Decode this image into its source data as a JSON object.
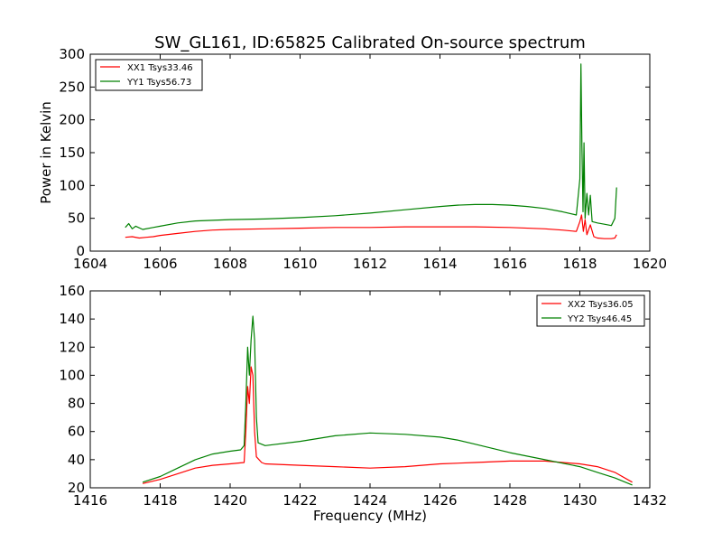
{
  "title": "SW_GL161, ID:65825 Calibrated On-source spectrum",
  "chart_data": [
    {
      "type": "line",
      "ylabel": "Power in Kelvin",
      "xlabel": "",
      "xlim": [
        1604,
        1620
      ],
      "ylim": [
        0,
        300
      ],
      "xticks": [
        1604,
        1606,
        1608,
        1610,
        1612,
        1614,
        1616,
        1618,
        1620
      ],
      "yticks": [
        0,
        50,
        100,
        150,
        200,
        250,
        300
      ],
      "legend": "top-left",
      "series": [
        {
          "name": "XX1 Tsys33.46",
          "color": "#ff0000",
          "points": [
            [
              1605.0,
              21
            ],
            [
              1605.2,
              22
            ],
            [
              1605.4,
              20
            ],
            [
              1605.6,
              21
            ],
            [
              1605.8,
              22
            ],
            [
              1606.0,
              24
            ],
            [
              1606.5,
              27
            ],
            [
              1607.0,
              30
            ],
            [
              1607.5,
              32
            ],
            [
              1608.0,
              33
            ],
            [
              1609.0,
              34
            ],
            [
              1610.0,
              35
            ],
            [
              1611.0,
              36
            ],
            [
              1612.0,
              36
            ],
            [
              1613.0,
              37
            ],
            [
              1614.0,
              37
            ],
            [
              1615.0,
              37
            ],
            [
              1616.0,
              36
            ],
            [
              1617.0,
              34
            ],
            [
              1617.5,
              32
            ],
            [
              1617.9,
              30
            ],
            [
              1618.0,
              45
            ],
            [
              1618.05,
              55
            ],
            [
              1618.1,
              30
            ],
            [
              1618.15,
              48
            ],
            [
              1618.2,
              25
            ],
            [
              1618.3,
              40
            ],
            [
              1618.4,
              22
            ],
            [
              1618.5,
              20
            ],
            [
              1618.7,
              19
            ],
            [
              1618.9,
              19
            ],
            [
              1619.0,
              20
            ],
            [
              1619.05,
              25
            ]
          ]
        },
        {
          "name": "YY1 Tsys56.73",
          "color": "#008000",
          "points": [
            [
              1605.0,
              36
            ],
            [
              1605.1,
              42
            ],
            [
              1605.2,
              34
            ],
            [
              1605.3,
              38
            ],
            [
              1605.5,
              33
            ],
            [
              1605.8,
              36
            ],
            [
              1606.0,
              38
            ],
            [
              1606.5,
              43
            ],
            [
              1607.0,
              46
            ],
            [
              1608.0,
              48
            ],
            [
              1609.0,
              49
            ],
            [
              1610.0,
              51
            ],
            [
              1611.0,
              54
            ],
            [
              1612.0,
              58
            ],
            [
              1613.0,
              63
            ],
            [
              1614.0,
              68
            ],
            [
              1614.5,
              70
            ],
            [
              1615.0,
              71
            ],
            [
              1615.5,
              71
            ],
            [
              1616.0,
              70
            ],
            [
              1616.5,
              68
            ],
            [
              1617.0,
              65
            ],
            [
              1617.5,
              60
            ],
            [
              1617.9,
              55
            ],
            [
              1618.0,
              110
            ],
            [
              1618.03,
              285
            ],
            [
              1618.06,
              160
            ],
            [
              1618.09,
              60
            ],
            [
              1618.12,
              165
            ],
            [
              1618.15,
              50
            ],
            [
              1618.2,
              88
            ],
            [
              1618.25,
              55
            ],
            [
              1618.3,
              85
            ],
            [
              1618.35,
              45
            ],
            [
              1618.5,
              43
            ],
            [
              1618.7,
              41
            ],
            [
              1618.9,
              39
            ],
            [
              1619.0,
              50
            ],
            [
              1619.05,
              97
            ]
          ]
        }
      ]
    },
    {
      "type": "line",
      "ylabel": "",
      "xlabel": "Frequency (MHz)",
      "xlim": [
        1416,
        1432
      ],
      "ylim": [
        20,
        160
      ],
      "xticks": [
        1416,
        1418,
        1420,
        1422,
        1424,
        1426,
        1428,
        1430,
        1432
      ],
      "yticks": [
        20,
        40,
        60,
        80,
        100,
        120,
        140,
        160
      ],
      "legend": "top-right",
      "series": [
        {
          "name": "XX2 Tsys36.05",
          "color": "#ff0000",
          "points": [
            [
              1417.5,
              23
            ],
            [
              1418.0,
              26
            ],
            [
              1418.5,
              30
            ],
            [
              1419.0,
              34
            ],
            [
              1419.5,
              36
            ],
            [
              1420.0,
              37
            ],
            [
              1420.4,
              38
            ],
            [
              1420.45,
              60
            ],
            [
              1420.5,
              92
            ],
            [
              1420.55,
              80
            ],
            [
              1420.6,
              106
            ],
            [
              1420.65,
              100
            ],
            [
              1420.7,
              60
            ],
            [
              1420.75,
              42
            ],
            [
              1420.9,
              38
            ],
            [
              1421.0,
              37
            ],
            [
              1422.0,
              36
            ],
            [
              1423.0,
              35
            ],
            [
              1424.0,
              34
            ],
            [
              1425.0,
              35
            ],
            [
              1426.0,
              37
            ],
            [
              1427.0,
              38
            ],
            [
              1428.0,
              39
            ],
            [
              1429.0,
              39
            ],
            [
              1430.0,
              37
            ],
            [
              1430.5,
              35
            ],
            [
              1431.0,
              31
            ],
            [
              1431.5,
              24
            ]
          ]
        },
        {
          "name": "YY2 Tsys46.45",
          "color": "#008000",
          "points": [
            [
              1417.5,
              24
            ],
            [
              1418.0,
              28
            ],
            [
              1418.5,
              34
            ],
            [
              1419.0,
              40
            ],
            [
              1419.5,
              44
            ],
            [
              1420.0,
              46
            ],
            [
              1420.3,
              47
            ],
            [
              1420.4,
              50
            ],
            [
              1420.45,
              80
            ],
            [
              1420.5,
              120
            ],
            [
              1420.55,
              100
            ],
            [
              1420.6,
              125
            ],
            [
              1420.65,
              142
            ],
            [
              1420.7,
              125
            ],
            [
              1420.75,
              70
            ],
            [
              1420.8,
              52
            ],
            [
              1421.0,
              50
            ],
            [
              1422.0,
              53
            ],
            [
              1423.0,
              57
            ],
            [
              1424.0,
              59
            ],
            [
              1425.0,
              58
            ],
            [
              1426.0,
              56
            ],
            [
              1426.5,
              54
            ],
            [
              1427.0,
              51
            ],
            [
              1428.0,
              45
            ],
            [
              1429.0,
              40
            ],
            [
              1430.0,
              35
            ],
            [
              1430.5,
              31
            ],
            [
              1431.0,
              27
            ],
            [
              1431.5,
              22
            ]
          ]
        }
      ]
    }
  ]
}
